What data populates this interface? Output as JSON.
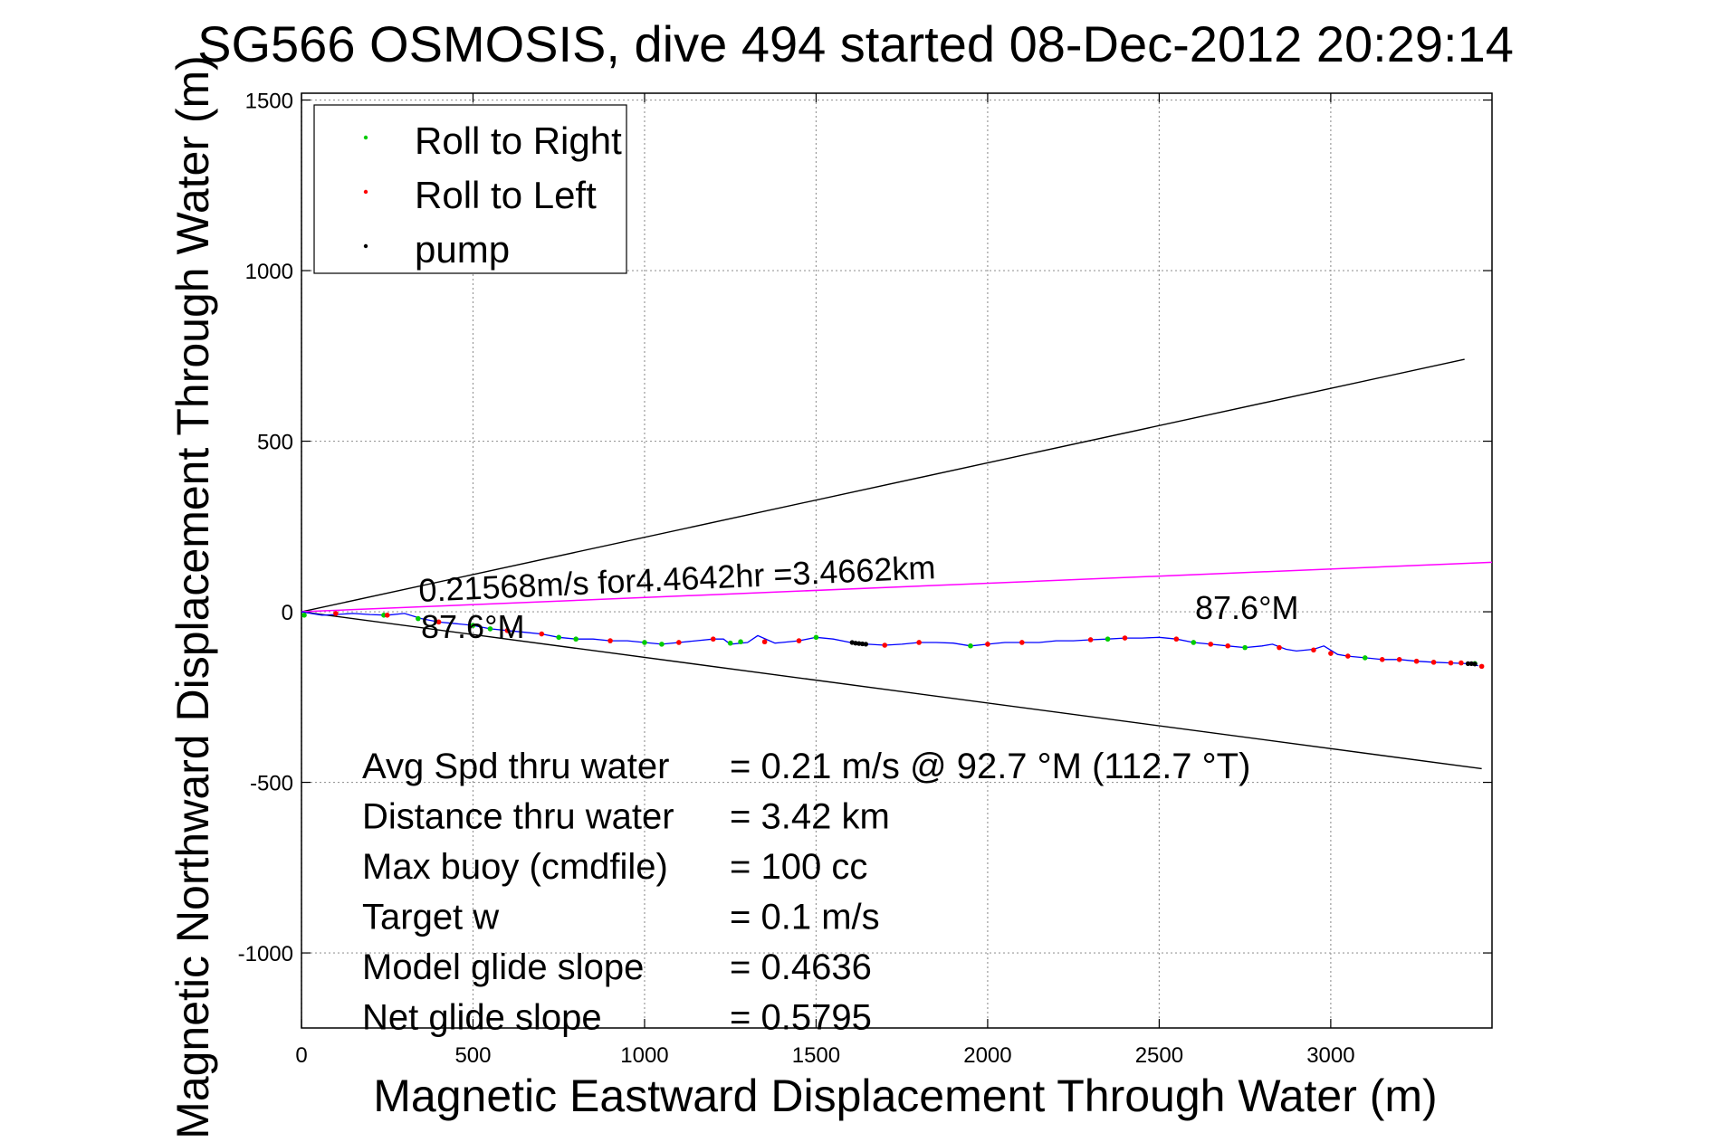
{
  "chart_data": {
    "type": "scatter",
    "title": "SG566 OSMOSIS, dive 494 started 08-Dec-2012 20:29:14",
    "xlabel": "Magnetic Eastward Displacement Through Water (m)",
    "ylabel": "Magnetic Northward Displacement Through Water (m)",
    "xlim": [
      0,
      3470
    ],
    "ylim": [
      -1220,
      1520
    ],
    "grid": true,
    "legend_position": "top-left",
    "x_ticks": [
      0,
      500,
      1000,
      1500,
      2000,
      2500,
      3000
    ],
    "y_ticks": [
      1500,
      1000,
      500,
      0,
      -500,
      -1000
    ],
    "legend": [
      {
        "label": "Roll to Right",
        "color": "#00cc00"
      },
      {
        "label": "Roll to Left",
        "color": "#ff0000"
      },
      {
        "label": "pump",
        "color": "#000000"
      }
    ],
    "track_color": "#0000ff",
    "track": [
      [
        0,
        0
      ],
      [
        60,
        -10
      ],
      [
        100,
        -8
      ],
      [
        150,
        -5
      ],
      [
        200,
        -8
      ],
      [
        250,
        -10
      ],
      [
        300,
        -5
      ],
      [
        350,
        -20
      ],
      [
        400,
        -30
      ],
      [
        450,
        -35
      ],
      [
        500,
        -40
      ],
      [
        550,
        -50
      ],
      [
        600,
        -55
      ],
      [
        650,
        -60
      ],
      [
        700,
        -65
      ],
      [
        750,
        -75
      ],
      [
        800,
        -80
      ],
      [
        850,
        -80
      ],
      [
        900,
        -85
      ],
      [
        950,
        -85
      ],
      [
        1000,
        -90
      ],
      [
        1050,
        -95
      ],
      [
        1100,
        -90
      ],
      [
        1150,
        -85
      ],
      [
        1200,
        -80
      ],
      [
        1230,
        -80
      ],
      [
        1250,
        -95
      ],
      [
        1300,
        -90
      ],
      [
        1330,
        -70
      ],
      [
        1380,
        -92
      ],
      [
        1400,
        -90
      ],
      [
        1450,
        -85
      ],
      [
        1500,
        -75
      ],
      [
        1550,
        -80
      ],
      [
        1600,
        -90
      ],
      [
        1650,
        -95
      ],
      [
        1700,
        -98
      ],
      [
        1750,
        -95
      ],
      [
        1800,
        -90
      ],
      [
        1850,
        -90
      ],
      [
        1900,
        -92
      ],
      [
        1950,
        -100
      ],
      [
        2000,
        -95
      ],
      [
        2050,
        -90
      ],
      [
        2100,
        -90
      ],
      [
        2150,
        -90
      ],
      [
        2200,
        -85
      ],
      [
        2250,
        -85
      ],
      [
        2300,
        -82
      ],
      [
        2350,
        -80
      ],
      [
        2400,
        -77
      ],
      [
        2450,
        -77
      ],
      [
        2500,
        -75
      ],
      [
        2550,
        -80
      ],
      [
        2600,
        -90
      ],
      [
        2650,
        -95
      ],
      [
        2700,
        -100
      ],
      [
        2750,
        -105
      ],
      [
        2800,
        -100
      ],
      [
        2830,
        -95
      ],
      [
        2870,
        -110
      ],
      [
        2900,
        -115
      ],
      [
        2950,
        -110
      ],
      [
        2980,
        -100
      ],
      [
        3020,
        -125
      ],
      [
        3050,
        -130
      ],
      [
        3100,
        -135
      ],
      [
        3150,
        -140
      ],
      [
        3200,
        -140
      ],
      [
        3250,
        -145
      ],
      [
        3300,
        -148
      ],
      [
        3350,
        -150
      ],
      [
        3400,
        -152
      ],
      [
        3430,
        -158
      ]
    ],
    "series": [
      {
        "name": "Roll to Right",
        "points": [
          [
            8,
            -10
          ],
          [
            240,
            -10
          ],
          [
            340,
            -20
          ],
          [
            500,
            -40
          ],
          [
            550,
            -50
          ],
          [
            750,
            -75
          ],
          [
            800,
            -80
          ],
          [
            1000,
            -90
          ],
          [
            1050,
            -95
          ],
          [
            1250,
            -92
          ],
          [
            1280,
            -88
          ],
          [
            1500,
            -75
          ],
          [
            1950,
            -100
          ],
          [
            2350,
            -80
          ],
          [
            2600,
            -90
          ],
          [
            2750,
            -105
          ],
          [
            3100,
            -135
          ],
          [
            3420,
            -152
          ]
        ]
      },
      {
        "name": "Roll to Left",
        "points": [
          [
            100,
            -5
          ],
          [
            250,
            -10
          ],
          [
            400,
            -30
          ],
          [
            600,
            -55
          ],
          [
            700,
            -65
          ],
          [
            900,
            -85
          ],
          [
            1100,
            -90
          ],
          [
            1200,
            -80
          ],
          [
            1350,
            -88
          ],
          [
            1450,
            -85
          ],
          [
            1700,
            -98
          ],
          [
            1800,
            -90
          ],
          [
            2000,
            -95
          ],
          [
            2100,
            -90
          ],
          [
            2300,
            -82
          ],
          [
            2400,
            -77
          ],
          [
            2550,
            -80
          ],
          [
            2650,
            -95
          ],
          [
            2700,
            -100
          ],
          [
            2850,
            -105
          ],
          [
            2950,
            -112
          ],
          [
            3000,
            -122
          ],
          [
            3050,
            -130
          ],
          [
            3150,
            -140
          ],
          [
            3200,
            -140
          ],
          [
            3250,
            -145
          ],
          [
            3300,
            -148
          ],
          [
            3350,
            -150
          ],
          [
            3380,
            -150
          ],
          [
            3440,
            -160
          ]
        ]
      },
      {
        "name": "pump",
        "points": [
          [
            1605,
            -90
          ],
          [
            1615,
            -92
          ],
          [
            1625,
            -93
          ],
          [
            1635,
            -94
          ],
          [
            1645,
            -95
          ],
          [
            3400,
            -152
          ],
          [
            3410,
            -152
          ],
          [
            3420,
            -153
          ]
        ]
      }
    ],
    "envelope_lines": [
      {
        "color": "#000000",
        "from": [
          0,
          0
        ],
        "to": [
          3390,
          740
        ]
      },
      {
        "color": "#000000",
        "from": [
          0,
          0
        ],
        "to": [
          3440,
          -460
        ]
      }
    ],
    "current_line": {
      "color": "#ff00ff",
      "from": [
        0,
        0
      ],
      "to": [
        3470,
        145
      ]
    },
    "annotations": {
      "current_text": "0.21568m/s for4.4642hr =3.4662km",
      "heading_left": "87.6°M",
      "heading_right": "87.6°M"
    },
    "stats": [
      {
        "label": "Avg Spd thru water",
        "value": "=  0.21 m/s @  92.7 °M (112.7 °T)"
      },
      {
        "label": "Distance thru water",
        "value": "=  3.42 km"
      },
      {
        "label": "Max buoy (cmdfile)",
        "value": "= 100 cc"
      },
      {
        "label": "Target w",
        "value": "= 0.1 m/s"
      },
      {
        "label": "Model glide slope",
        "value": "= 0.4636"
      },
      {
        "label": "Net glide slope",
        "value": "= 0.5795"
      }
    ]
  }
}
